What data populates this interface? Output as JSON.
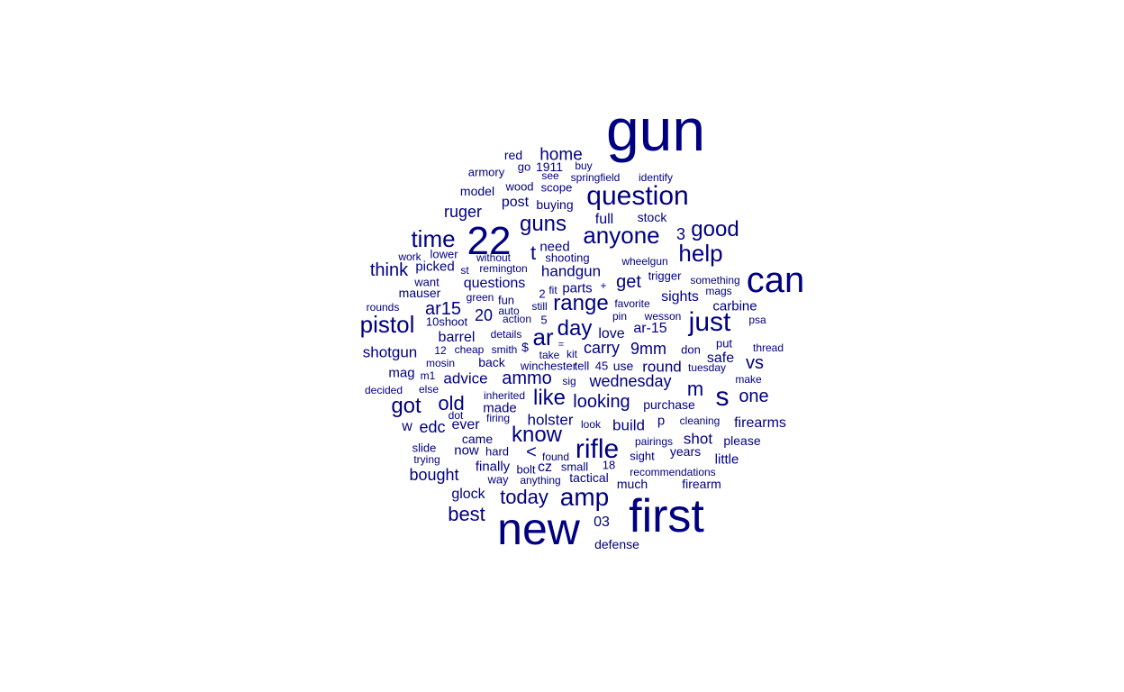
{
  "word_color": "#000080",
  "words": [
    "gun",
    "first",
    "new",
    "can",
    "22",
    "question",
    "s",
    "just",
    "rifle",
    "amp",
    "anyone",
    "help",
    "pistol",
    "time",
    "ar",
    "guns",
    "know",
    "good",
    "range",
    "day",
    "like",
    "got",
    "today",
    "old",
    "home",
    "best",
    "ammo",
    "looking",
    "wednesday",
    "m",
    "one",
    "get",
    "ar15",
    "think",
    "carry",
    "9mm",
    "t",
    "round",
    "shotgun",
    "handgun",
    "ruger",
    "advice",
    "vs",
    "bought",
    "3",
    "post",
    "glock",
    "20",
    "holster",
    "build",
    "firearms",
    "shot",
    "edc",
    "ever",
    "made",
    "barrel",
    "sights",
    "picked",
    "questions",
    "love",
    "ar-15",
    "full",
    "stock",
    "safe",
    "need",
    "mag",
    "w",
    "finally",
    "now",
    "came",
    "much",
    "firearm",
    "parts",
    "mauser",
    "carbine",
    "purchase",
    "defense",
    "little",
    "please",
    "years",
    "model",
    "wood",
    "buying",
    "scope",
    "red",
    "armory",
    "1911",
    "springfield",
    "identify",
    "go",
    "buy",
    "see",
    "lower",
    "work",
    "shooting",
    "without",
    "wheelgun",
    "remington",
    "st",
    "trigger",
    "something",
    "mags",
    "want",
    "green",
    "fun",
    "fit",
    "favorite",
    "2",
    "rounds",
    "auto",
    "still",
    "pin",
    "wesson",
    "psa",
    "10shoot",
    "action",
    "5",
    "details",
    "cheap",
    "smith",
    "$",
    "take",
    "kit",
    "12",
    "=",
    "don",
    "put",
    "thread",
    "mosin",
    "back",
    "winchester",
    "tell",
    "45",
    "use",
    "tuesday",
    "make",
    "m1",
    "sig",
    "decided",
    "else",
    "inherited",
    "dot",
    "firing",
    "look",
    "cleaning",
    "p",
    "slide",
    "hard",
    "pairings",
    "trying",
    "bolt",
    "cz",
    "small",
    "18",
    "sight",
    "found",
    "recommendations",
    "tactical",
    "way",
    "anything",
    "03",
    "<",
    "+"
  ]
}
